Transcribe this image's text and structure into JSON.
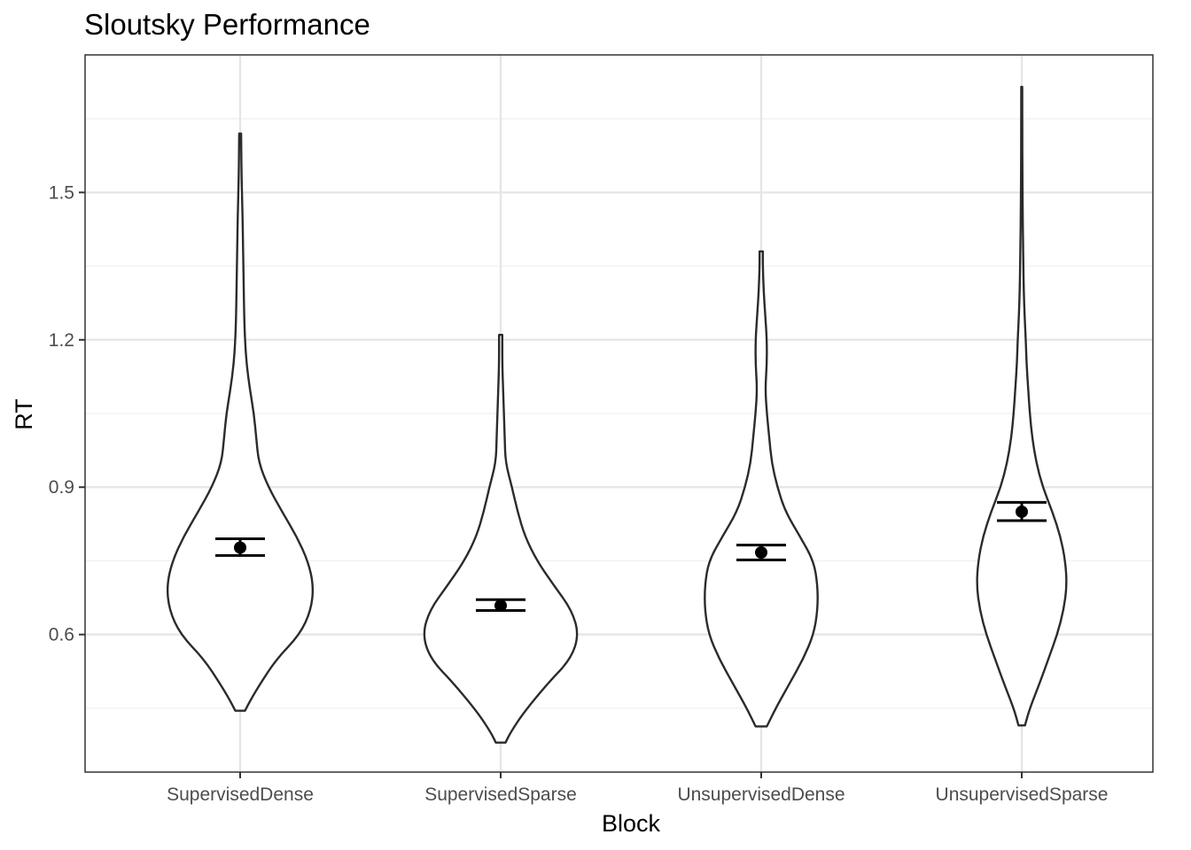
{
  "chart_data": {
    "type": "violin",
    "title": "Sloutsky Performance",
    "xlabel": "Block",
    "ylabel": "RT",
    "categories": [
      "SupervisedDense",
      "SupervisedSparse",
      "UnsupervisedDense",
      "UnsupervisedSparse"
    ],
    "ylim": [
      0.32,
      1.78
    ],
    "yticks": [
      0.6,
      0.9,
      1.2,
      1.5
    ],
    "ytick_labels": [
      "0.6",
      "0.9",
      "1.2",
      "1.5"
    ],
    "grid": true,
    "series": [
      {
        "category": "SupervisedDense",
        "mean": 0.777,
        "ci_low": 0.761,
        "ci_high": 0.795,
        "min": 0.445,
        "max": 1.62,
        "density": [
          [
            0.445,
            0.06
          ],
          [
            0.47,
            0.14
          ],
          [
            0.5,
            0.25
          ],
          [
            0.55,
            0.45
          ],
          [
            0.6,
            0.74
          ],
          [
            0.65,
            0.88
          ],
          [
            0.7,
            0.91
          ],
          [
            0.75,
            0.84
          ],
          [
            0.8,
            0.7
          ],
          [
            0.85,
            0.52
          ],
          [
            0.9,
            0.35
          ],
          [
            0.95,
            0.23
          ],
          [
            1.0,
            0.2
          ],
          [
            1.05,
            0.17
          ],
          [
            1.1,
            0.12
          ],
          [
            1.15,
            0.08
          ],
          [
            1.2,
            0.06
          ],
          [
            1.25,
            0.05
          ],
          [
            1.3,
            0.045
          ],
          [
            1.35,
            0.04
          ],
          [
            1.4,
            0.035
          ],
          [
            1.45,
            0.03
          ],
          [
            1.5,
            0.022
          ],
          [
            1.55,
            0.016
          ],
          [
            1.62,
            0.012
          ]
        ]
      },
      {
        "category": "SupervisedSparse",
        "mean": 0.659,
        "ci_low": 0.649,
        "ci_high": 0.671,
        "min": 0.38,
        "max": 1.21,
        "density": [
          [
            0.38,
            0.06
          ],
          [
            0.4,
            0.12
          ],
          [
            0.44,
            0.28
          ],
          [
            0.5,
            0.58
          ],
          [
            0.55,
            0.87
          ],
          [
            0.6,
            0.97
          ],
          [
            0.65,
            0.88
          ],
          [
            0.7,
            0.66
          ],
          [
            0.75,
            0.45
          ],
          [
            0.8,
            0.3
          ],
          [
            0.85,
            0.21
          ],
          [
            0.9,
            0.14
          ],
          [
            0.95,
            0.06
          ],
          [
            1.0,
            0.05
          ],
          [
            1.05,
            0.04
          ],
          [
            1.1,
            0.03
          ],
          [
            1.15,
            0.02
          ],
          [
            1.21,
            0.02
          ]
        ]
      },
      {
        "category": "UnsupervisedDense",
        "mean": 0.767,
        "ci_low": 0.752,
        "ci_high": 0.782,
        "min": 0.413,
        "max": 1.38,
        "density": [
          [
            0.413,
            0.07
          ],
          [
            0.45,
            0.18
          ],
          [
            0.5,
            0.35
          ],
          [
            0.55,
            0.52
          ],
          [
            0.6,
            0.65
          ],
          [
            0.65,
            0.7
          ],
          [
            0.7,
            0.7
          ],
          [
            0.75,
            0.65
          ],
          [
            0.8,
            0.48
          ],
          [
            0.85,
            0.3
          ],
          [
            0.9,
            0.2
          ],
          [
            0.95,
            0.13
          ],
          [
            1.0,
            0.1
          ],
          [
            1.05,
            0.07
          ],
          [
            1.1,
            0.05
          ],
          [
            1.15,
            0.07
          ],
          [
            1.2,
            0.07
          ],
          [
            1.25,
            0.05
          ],
          [
            1.3,
            0.03
          ],
          [
            1.35,
            0.02
          ],
          [
            1.38,
            0.02
          ]
        ]
      },
      {
        "category": "UnsupervisedSparse",
        "mean": 0.85,
        "ci_low": 0.832,
        "ci_high": 0.869,
        "min": 0.415,
        "max": 1.715,
        "density": [
          [
            0.415,
            0.04
          ],
          [
            0.45,
            0.1
          ],
          [
            0.5,
            0.22
          ],
          [
            0.55,
            0.33
          ],
          [
            0.6,
            0.44
          ],
          [
            0.65,
            0.52
          ],
          [
            0.7,
            0.56
          ],
          [
            0.75,
            0.54
          ],
          [
            0.8,
            0.48
          ],
          [
            0.85,
            0.38
          ],
          [
            0.9,
            0.26
          ],
          [
            0.95,
            0.18
          ],
          [
            1.0,
            0.13
          ],
          [
            1.05,
            0.1
          ],
          [
            1.1,
            0.08
          ],
          [
            1.15,
            0.06
          ],
          [
            1.2,
            0.05
          ],
          [
            1.25,
            0.035
          ],
          [
            1.3,
            0.025
          ],
          [
            1.35,
            0.02
          ],
          [
            1.4,
            0.016
          ],
          [
            1.45,
            0.012
          ],
          [
            1.5,
            0.01
          ],
          [
            1.55,
            0.008
          ],
          [
            1.6,
            0.007
          ],
          [
            1.715,
            0.006
          ]
        ]
      }
    ]
  }
}
